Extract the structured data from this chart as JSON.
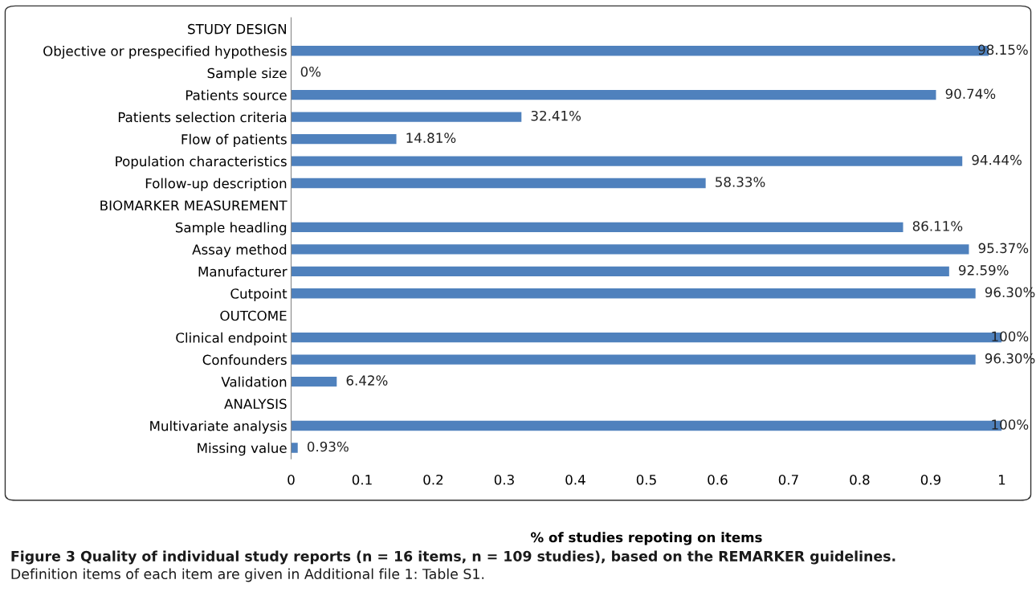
{
  "chart_data": {
    "type": "bar",
    "orientation": "horizontal",
    "xlabel": "% of studies repoting on items",
    "categories": [
      "STUDY DESIGN",
      "Objective or prespecified hypothesis",
      "Sample size",
      "Patients source",
      "Patients selection criteria",
      "Flow of patients",
      "Population characteristics",
      "Follow-up description",
      "BIOMARKER MEASUREMENT",
      "Sample headling",
      "Assay method",
      "Manufacturer",
      "Cutpoint",
      "OUTCOME",
      "Clinical endpoint",
      "Confounders",
      "Validation",
      "ANALYSIS",
      "Multivariate analysis",
      "Missing value"
    ],
    "values": [
      null,
      0.9815,
      0,
      0.9074,
      0.3241,
      0.1481,
      0.9444,
      0.5833,
      null,
      0.8611,
      0.9537,
      0.9259,
      0.963,
      null,
      1,
      0.963,
      0.0642,
      null,
      1,
      0.0093
    ],
    "value_labels": [
      null,
      "98.15%",
      "0%",
      "90.74%",
      "32.41%",
      "14.81%",
      "94.44%",
      "58.33%",
      null,
      "86.11%",
      "95.37%",
      "92.59%",
      "96.30%",
      null,
      "100%",
      "96.30%",
      "6.42%",
      null,
      "100%",
      "0.93%"
    ],
    "color": "#4f81bd",
    "xlim": [
      0,
      1
    ],
    "xticks": [
      0,
      0.1,
      0.2,
      0.3,
      0.4,
      0.5,
      0.6,
      0.7,
      0.8,
      0.9,
      1
    ],
    "grid": false,
    "legend": false,
    "annotations": [
      "Figure 3 Quality of individual study reports (n = 16 items, n = 109 studies), based on the REMARKER guidelines.",
      "Definition items of each item are given in Additional file 1: Table S1."
    ]
  }
}
